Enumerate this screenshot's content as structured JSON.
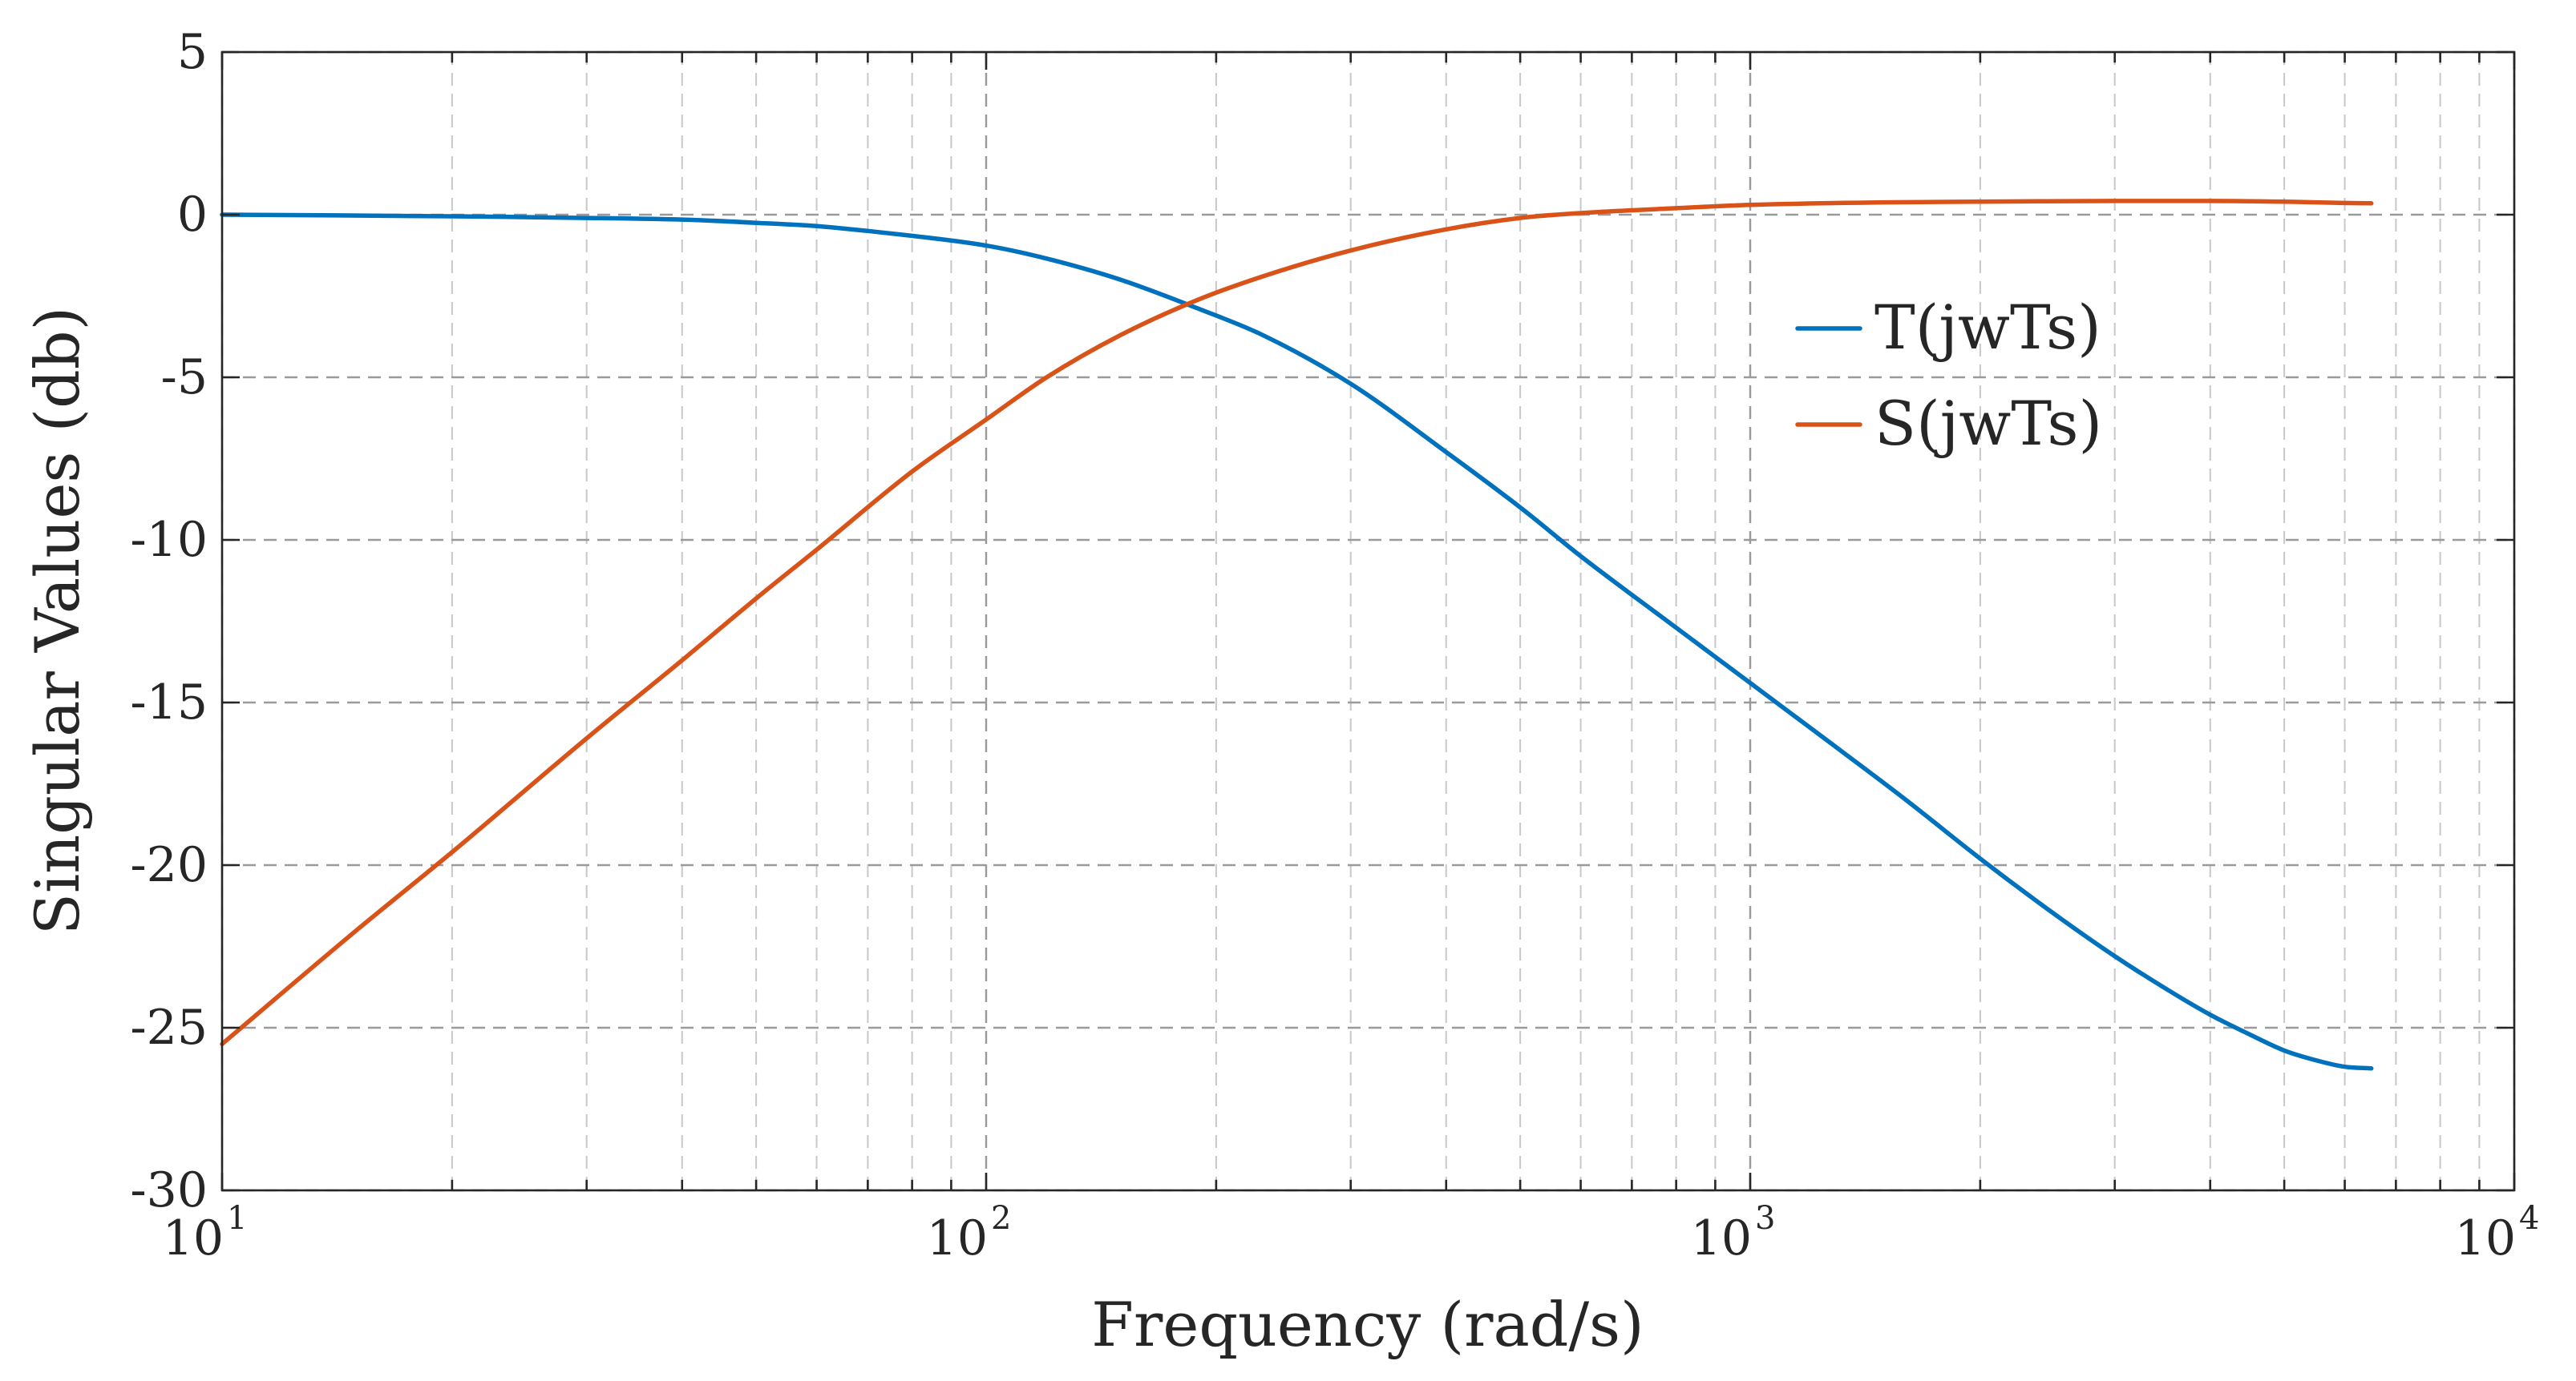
{
  "chart_data": {
    "type": "line",
    "title": "",
    "xlabel": "Frequency (rad/s)",
    "ylabel": "Singular Values (db)",
    "xscale": "log",
    "xlim": [
      10,
      10000
    ],
    "ylim": [
      -30,
      5
    ],
    "grid": true,
    "legend_position": "top-right",
    "xticks": [
      {
        "value": 10,
        "base": "10",
        "exp": "1"
      },
      {
        "value": 100,
        "base": "10",
        "exp": "2"
      },
      {
        "value": 1000,
        "base": "10",
        "exp": "3"
      },
      {
        "value": 10000,
        "base": "10",
        "exp": "4"
      }
    ],
    "yticks": [
      {
        "value": 5,
        "label": "5"
      },
      {
        "value": 0,
        "label": "0"
      },
      {
        "value": -5,
        "label": "-5"
      },
      {
        "value": -10,
        "label": "-10"
      },
      {
        "value": -15,
        "label": "-15"
      },
      {
        "value": -20,
        "label": "-20"
      },
      {
        "value": -25,
        "label": "-25"
      },
      {
        "value": -30,
        "label": "-30"
      }
    ],
    "series": [
      {
        "name": "T(jwTs)",
        "color": "#0072BD",
        "x": [
          10,
          20,
          30,
          40,
          50,
          60,
          70,
          80,
          100,
          120,
          150,
          190,
          230,
          300,
          400,
          500,
          600,
          800,
          1000,
          1300,
          1600,
          2000,
          2500,
          3000,
          3500,
          4000,
          4500,
          5000,
          5500,
          6000,
          6500
        ],
        "y": [
          0.0,
          -0.05,
          -0.1,
          -0.15,
          -0.25,
          -0.35,
          -0.5,
          -0.65,
          -0.95,
          -1.35,
          -2.0,
          -2.9,
          -3.7,
          -5.2,
          -7.3,
          -9.0,
          -10.5,
          -12.7,
          -14.4,
          -16.4,
          -18.0,
          -19.8,
          -21.5,
          -22.8,
          -23.8,
          -24.6,
          -25.2,
          -25.7,
          -26.0,
          -26.2,
          -26.25
        ]
      },
      {
        "name": "S(jwTs)",
        "color": "#D95319",
        "x": [
          10,
          15,
          20,
          30,
          40,
          50,
          60,
          80,
          100,
          120,
          150,
          190,
          230,
          300,
          400,
          500,
          600,
          800,
          1000,
          1500,
          2000,
          3000,
          4000,
          5000,
          5500,
          6000,
          6500
        ],
        "y": [
          -25.5,
          -22.0,
          -19.6,
          -16.1,
          -13.7,
          -11.8,
          -10.3,
          -7.9,
          -6.3,
          -5.0,
          -3.7,
          -2.6,
          -1.9,
          -1.1,
          -0.45,
          -0.1,
          0.05,
          0.2,
          0.3,
          0.38,
          0.4,
          0.42,
          0.42,
          0.4,
          0.38,
          0.36,
          0.35
        ]
      }
    ]
  }
}
